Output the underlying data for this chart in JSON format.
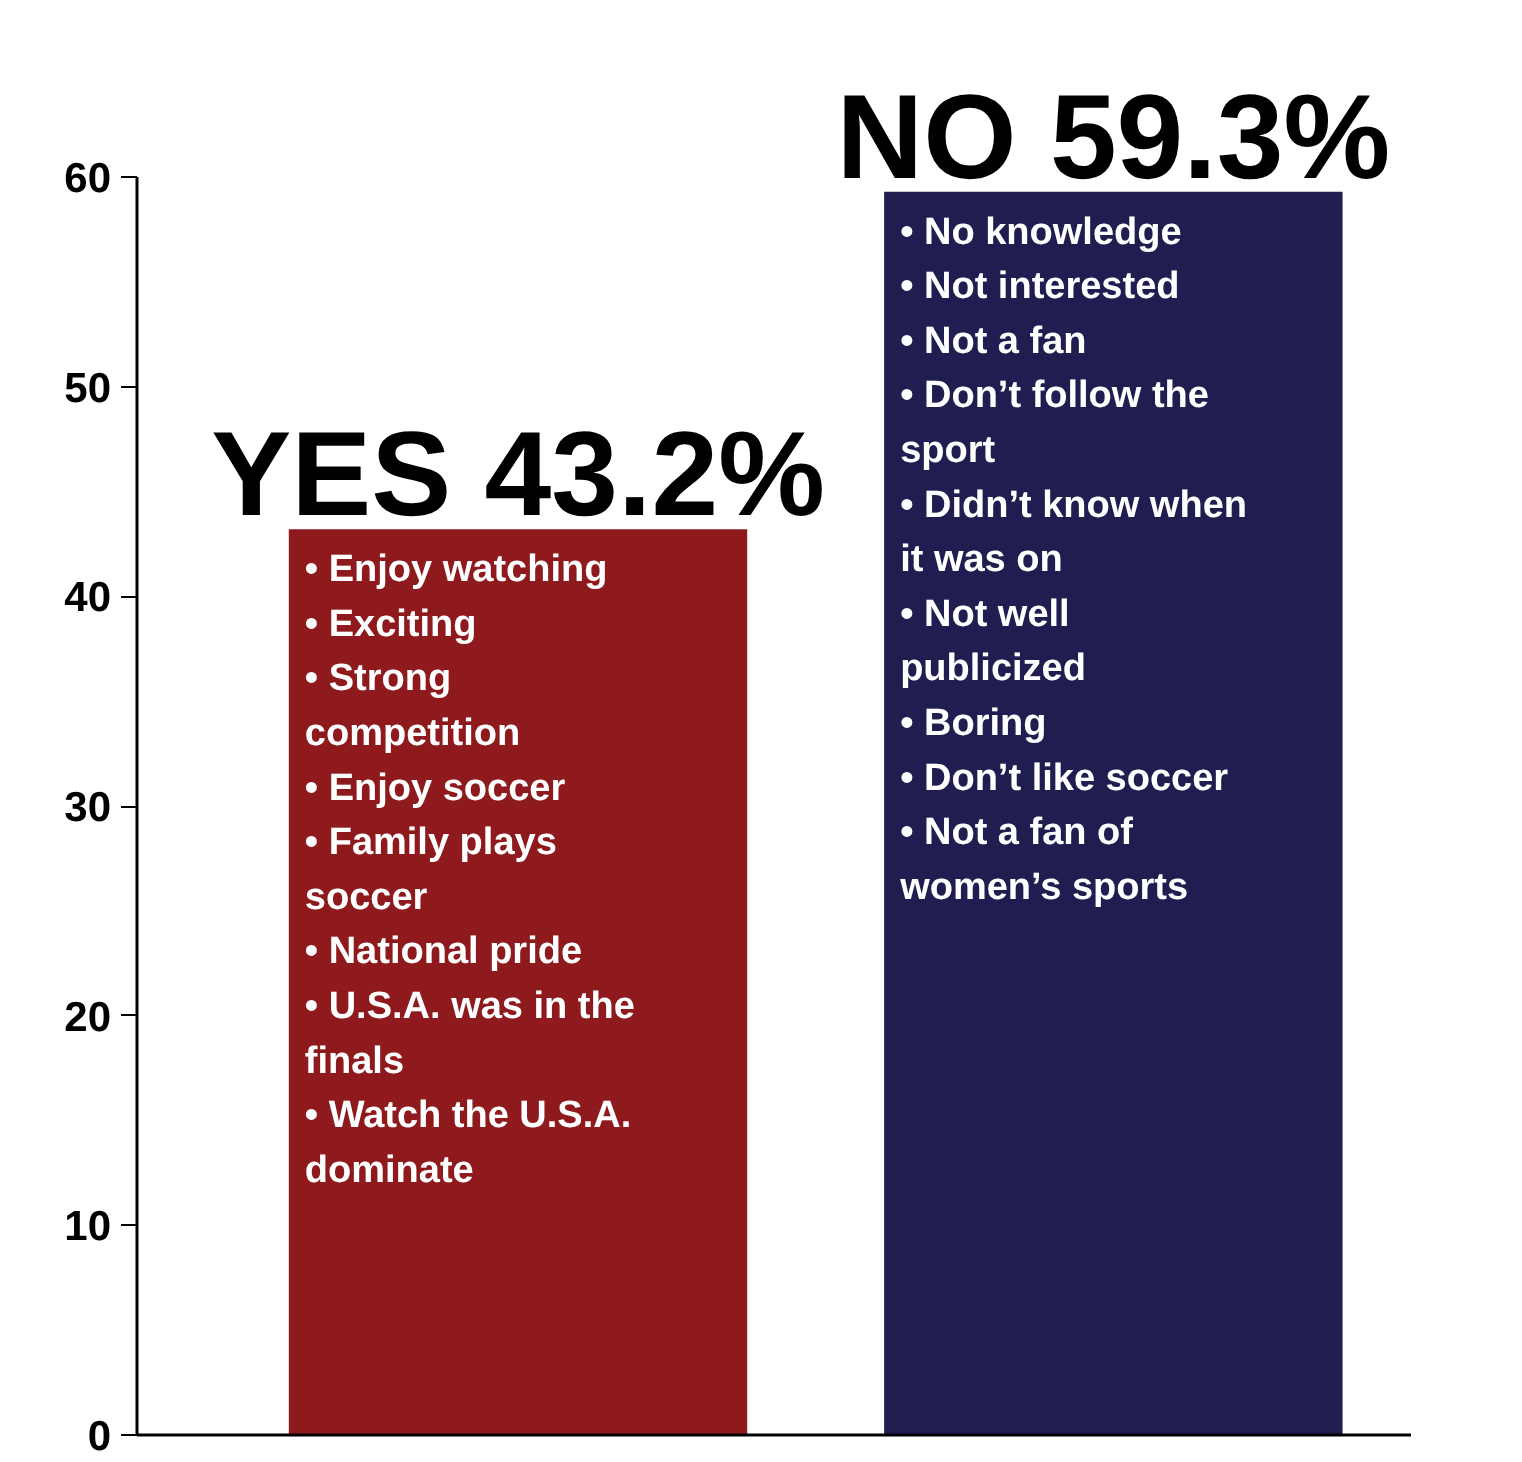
{
  "chart_data": {
    "type": "bar",
    "categories": [
      null,
      null
    ],
    "values": [
      43.2,
      59.3
    ],
    "colors": [
      "#8f1a1e",
      "#201e50"
    ],
    "value_labels": [
      "YES 43.2%",
      "NO 59.3%"
    ],
    "annotations": [
      "• Enjoy watching\n• Exciting\n• Strong\ncompetition\n• Enjoy soccer\n• Family plays\nsoccer\n• National pride\n• U.S.A. was in the\nfinals\n• Watch the U.S.A.\ndominate",
      "• No knowledge\n• Not interested\n• Not a fan\n• Don’t follow the\nsport\n• Didn’t know when\nit was on\n• Not well\npublicized\n• Boring\n• Don’t like soccer\n• Not a fan of\nwomen’s sports"
    ],
    "ylim": [
      0,
      60
    ],
    "yticks": [
      0,
      10,
      20,
      30,
      40,
      50,
      60
    ],
    "grid": false,
    "tick_labels": "y"
  }
}
